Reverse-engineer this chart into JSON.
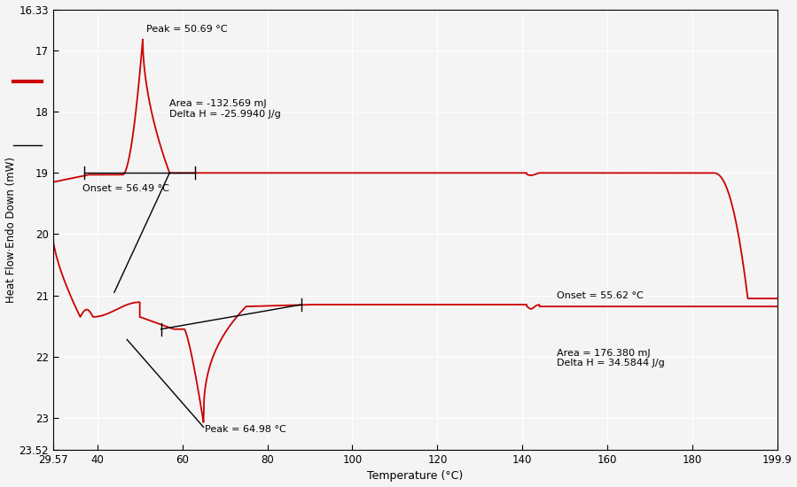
{
  "xlim": [
    29.57,
    199.9
  ],
  "ylim": [
    23.52,
    16.33
  ],
  "xlabel": "Temperature (°C)",
  "ylabel": "Heat Flow·Endo Down (mW)",
  "xticks": [
    29.57,
    40,
    60,
    80,
    100,
    120,
    140,
    160,
    180,
    199.9
  ],
  "yticks": [
    16.33,
    17,
    18,
    19,
    20,
    21,
    22,
    23,
    23.52
  ],
  "bg_color": "#f4f4f4",
  "line_color": "#cc0000",
  "grid_color": "#ffffff",
  "peak1_label": "Peak = 50.69 °C",
  "peak1_x": 50.69,
  "peak1_y": 16.82,
  "onset1_label": "Onset = 56.49 °C",
  "area1_label": "Area = -132.569 mJ\nDelta H = -25.9940 J/g",
  "peak2_label": "Peak = 64.98 °C",
  "peak2_x": 64.98,
  "peak2_y": 23.07,
  "onset2_label": "Onset = 55.62 °C",
  "area2_label": "Area = 176.380 mJ\nDelta H = 34.5844 J/g"
}
